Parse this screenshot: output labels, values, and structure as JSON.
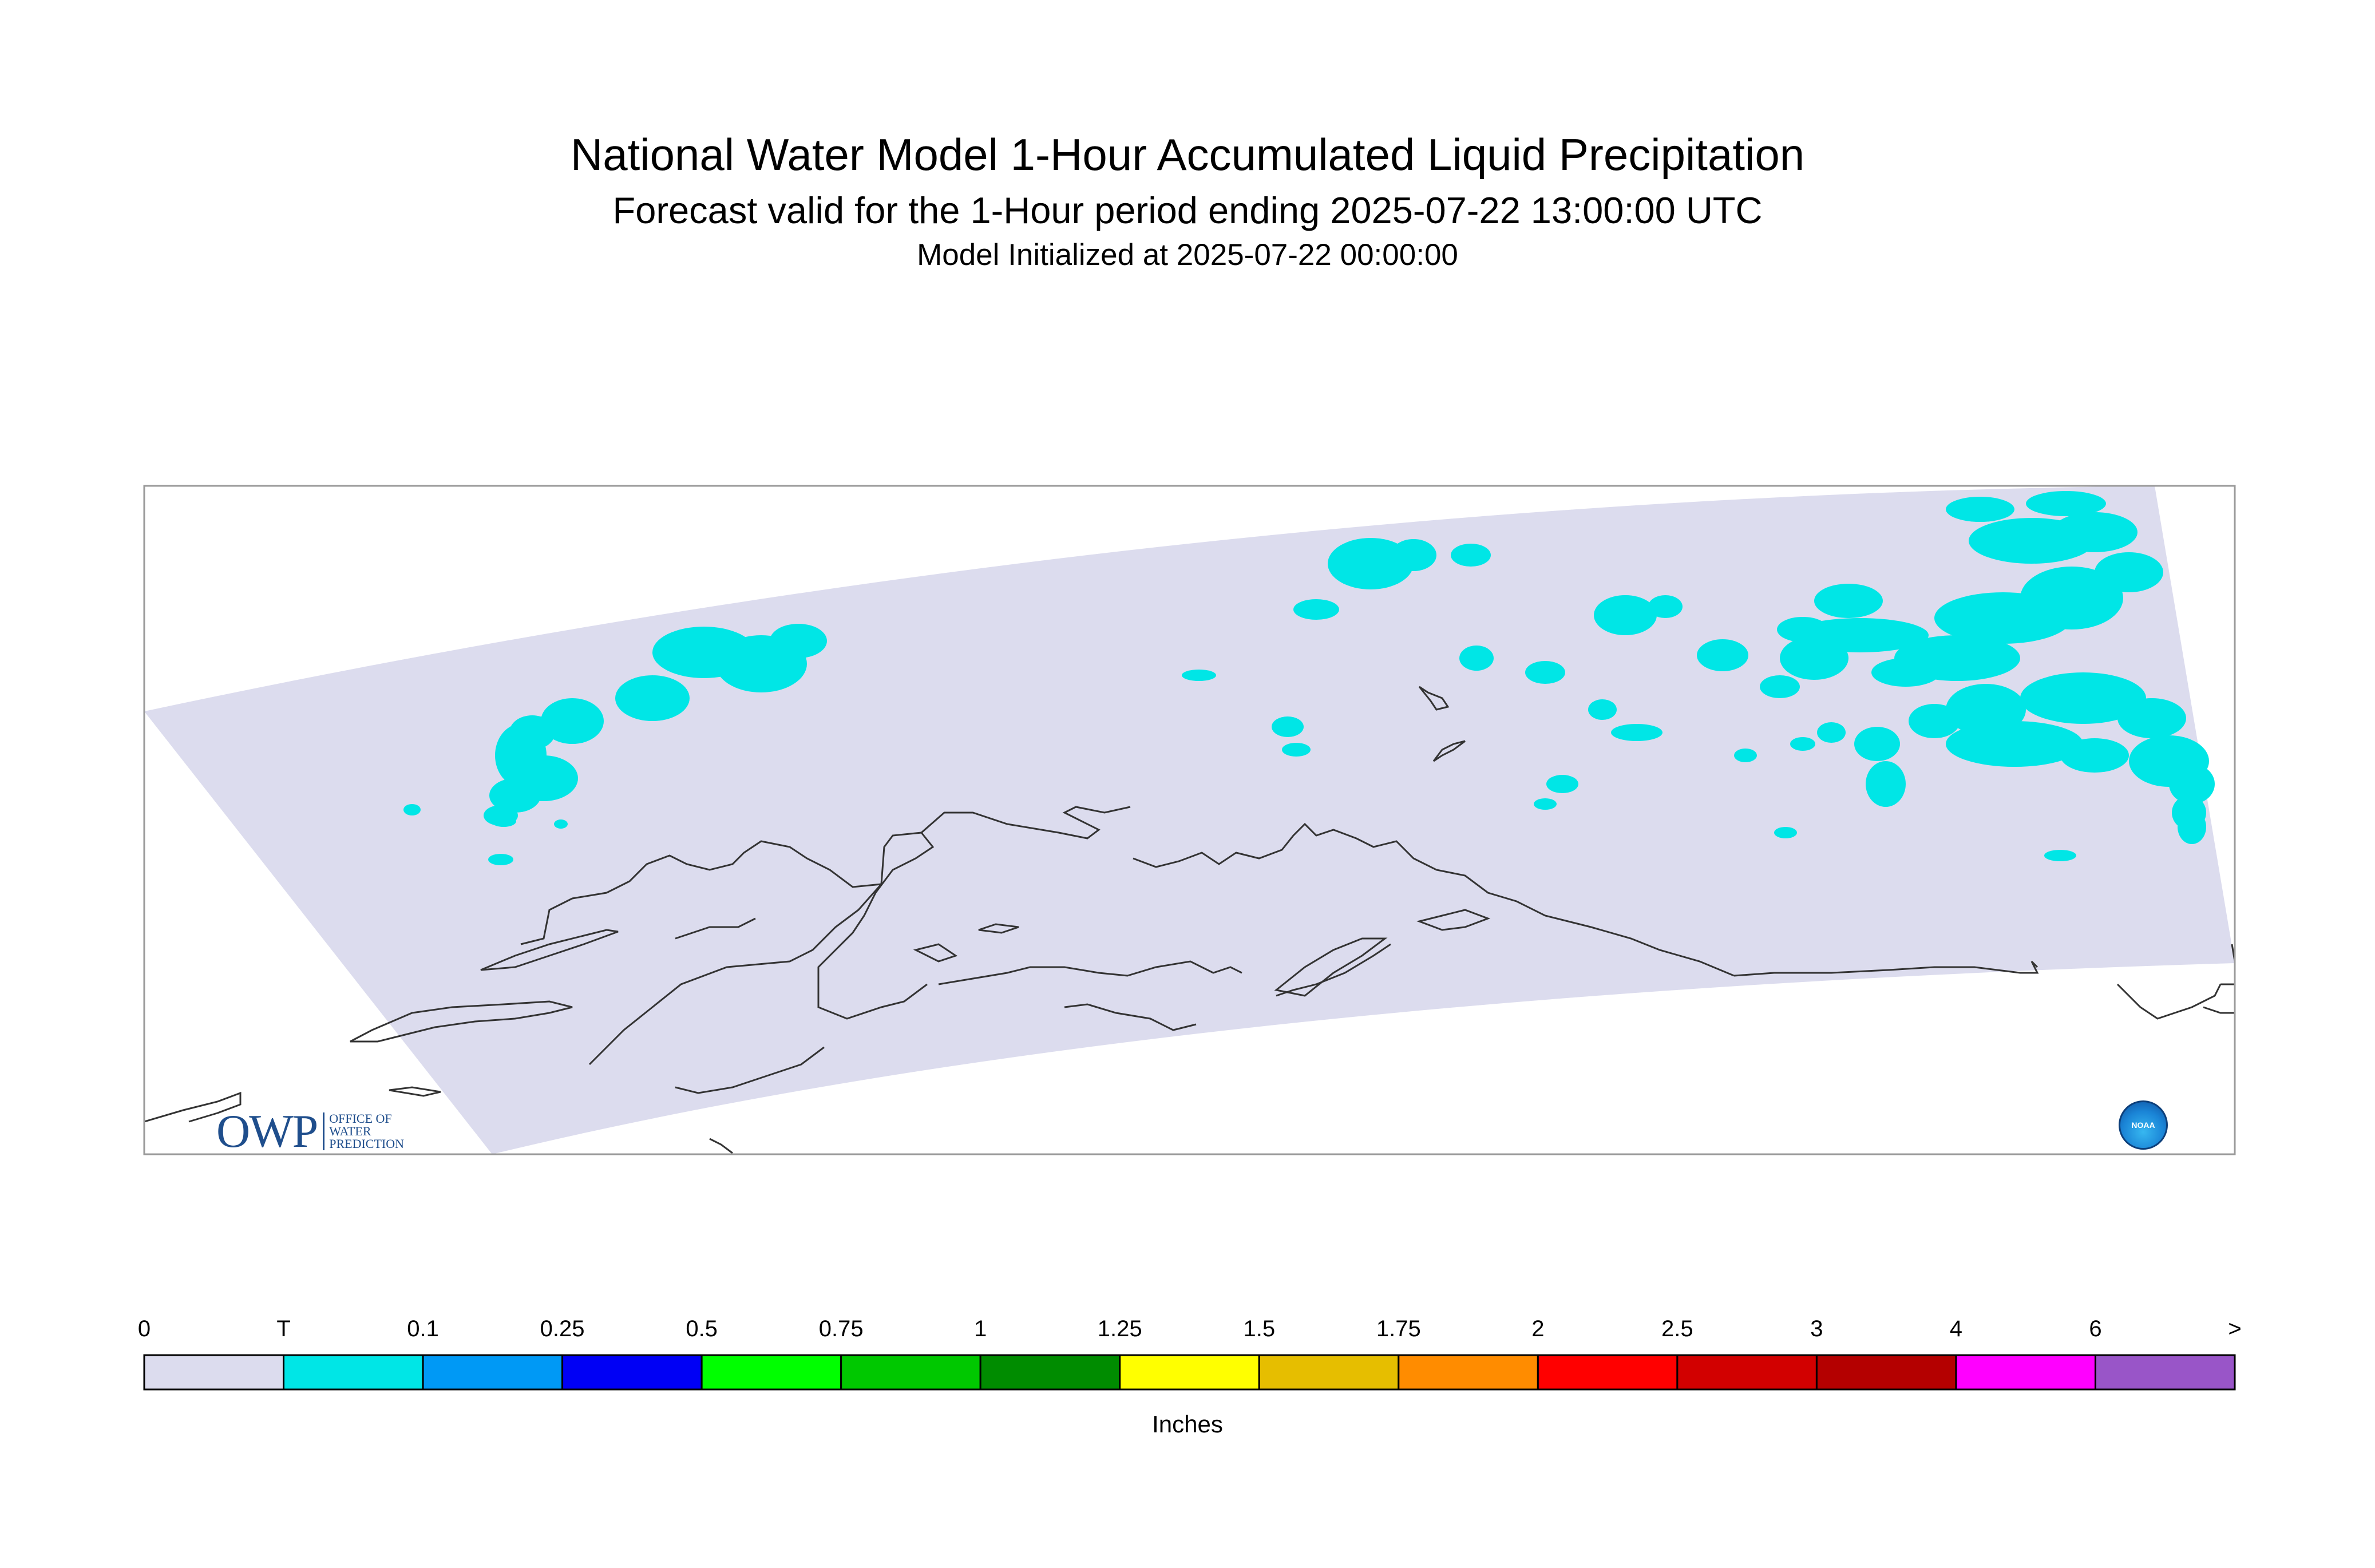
{
  "title": {
    "line1": "National Water Model 1-Hour Accumulated Liquid Precipitation",
    "line2": "Forecast valid for the 1-Hour period ending 2025-07-22 13:00:00 UTC",
    "line3": "Model Initialized at 2025-07-22 00:00:00"
  },
  "colorbar": {
    "units": "Inches",
    "labels": [
      "0",
      "T",
      "0.1",
      "0.25",
      "0.5",
      "0.75",
      "1",
      "1.25",
      "1.5",
      "1.75",
      "2",
      "2.5",
      "3",
      "4",
      "6",
      ">"
    ],
    "colors": [
      "#dcdcee",
      "#00e6e6",
      "#0099f5",
      "#0000f5",
      "#00ff00",
      "#00c800",
      "#008c00",
      "#ffff00",
      "#e6be00",
      "#ff8c00",
      "#ff0000",
      "#d20000",
      "#b40000",
      "#ff00ff",
      "#9955c8"
    ]
  },
  "map": {
    "model_domain_color": "#dcdcee",
    "precip_color": "#00e6e6",
    "coastline_color": "#333333"
  },
  "logos": {
    "owp": {
      "letters": "OWP",
      "sub": [
        "OFFICE OF",
        "WATER",
        "PREDICTION"
      ],
      "color": "#1f4e8c"
    },
    "noaa": {
      "text": "NOAA"
    }
  }
}
